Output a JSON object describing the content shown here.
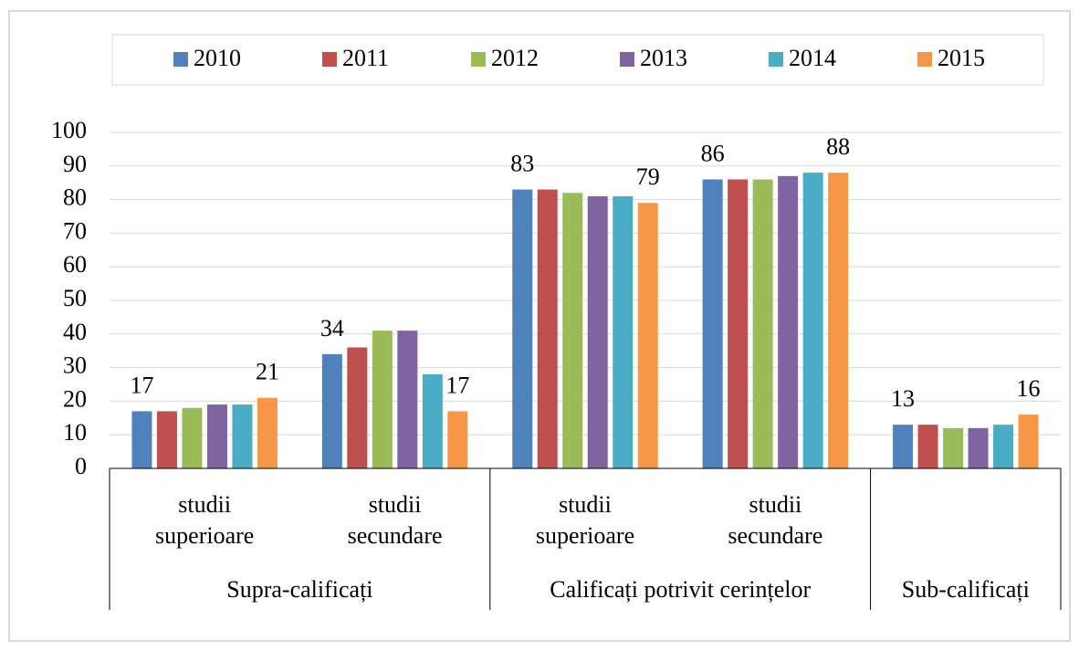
{
  "chart_data": {
    "type": "bar",
    "groups": [
      {
        "name": "Supra-calificați",
        "categories": [
          "studii superioare",
          "studii secundare"
        ]
      },
      {
        "name": "Calificați potrivit cerințelor",
        "categories": [
          "studii superioare",
          "studii secundare"
        ]
      },
      {
        "name": "Sub-calificați",
        "categories": [
          null
        ]
      }
    ],
    "series": [
      {
        "name": "2010",
        "color": "#4f81bd",
        "values": [
          17,
          34,
          83,
          86,
          13
        ],
        "show_labels": true
      },
      {
        "name": "2011",
        "color": "#c0504d",
        "values": [
          17,
          36,
          83,
          86,
          13
        ],
        "show_labels": false
      },
      {
        "name": "2012",
        "color": "#9bbb59",
        "values": [
          18,
          41,
          82,
          86,
          12
        ],
        "show_labels": false
      },
      {
        "name": "2013",
        "color": "#8064a2",
        "values": [
          19,
          41,
          81,
          87,
          12
        ],
        "show_labels": false
      },
      {
        "name": "2014",
        "color": "#4bacc6",
        "values": [
          19,
          28,
          81,
          88,
          13
        ],
        "show_labels": false
      },
      {
        "name": "2015",
        "color": "#f79646",
        "values": [
          21,
          17,
          79,
          88,
          16
        ],
        "show_labels": true
      }
    ],
    "ylim": [
      0,
      100
    ],
    "yticks": [
      0,
      10,
      20,
      30,
      40,
      50,
      60,
      70,
      80,
      90,
      100
    ],
    "grid": true,
    "legend": "top"
  }
}
